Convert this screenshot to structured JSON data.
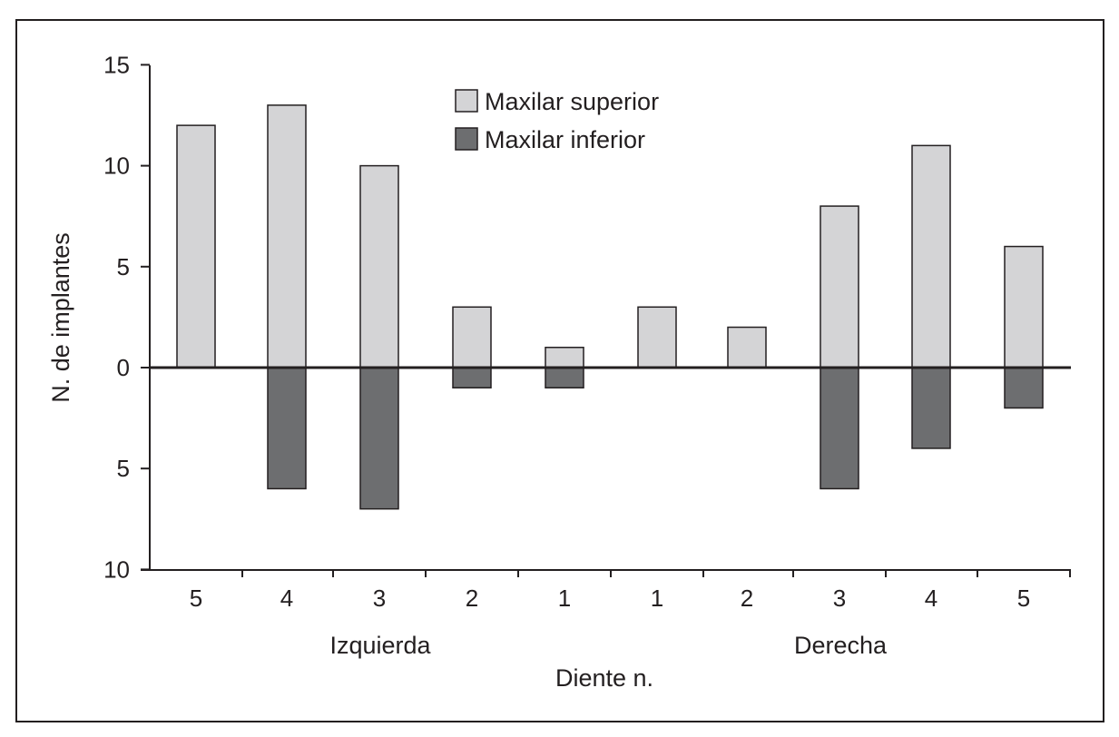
{
  "chart_data": {
    "type": "bar",
    "title": "",
    "xlabel": "Diente n.",
    "ylabel": "N. de implantes",
    "categories": [
      "5",
      "4",
      "3",
      "2",
      "1",
      "1",
      "2",
      "3",
      "4",
      "5"
    ],
    "groups": [
      {
        "label": "Izquierda",
        "from": 0,
        "to": 4
      },
      {
        "label": "Derecha",
        "from": 5,
        "to": 9
      }
    ],
    "series": [
      {
        "name": "Maxilar superior",
        "color": "#d4d4d6",
        "direction": "up",
        "values": [
          12,
          13,
          10,
          3,
          1,
          3,
          2,
          8,
          11,
          6
        ]
      },
      {
        "name": "Maxilar inferior",
        "color": "#6d6e70",
        "direction": "down",
        "values": [
          0,
          6,
          7,
          1,
          1,
          0,
          0,
          6,
          4,
          2
        ]
      }
    ],
    "yticks": [
      {
        "value": 15,
        "label": "15"
      },
      {
        "value": 10,
        "label": "10"
      },
      {
        "value": 5,
        "label": "5"
      },
      {
        "value": 0,
        "label": "0"
      },
      {
        "value": -5,
        "label": "5"
      },
      {
        "value": -10,
        "label": "10"
      }
    ],
    "ylim": [
      -10,
      15
    ],
    "grid": false,
    "legend_position": "top-center"
  }
}
